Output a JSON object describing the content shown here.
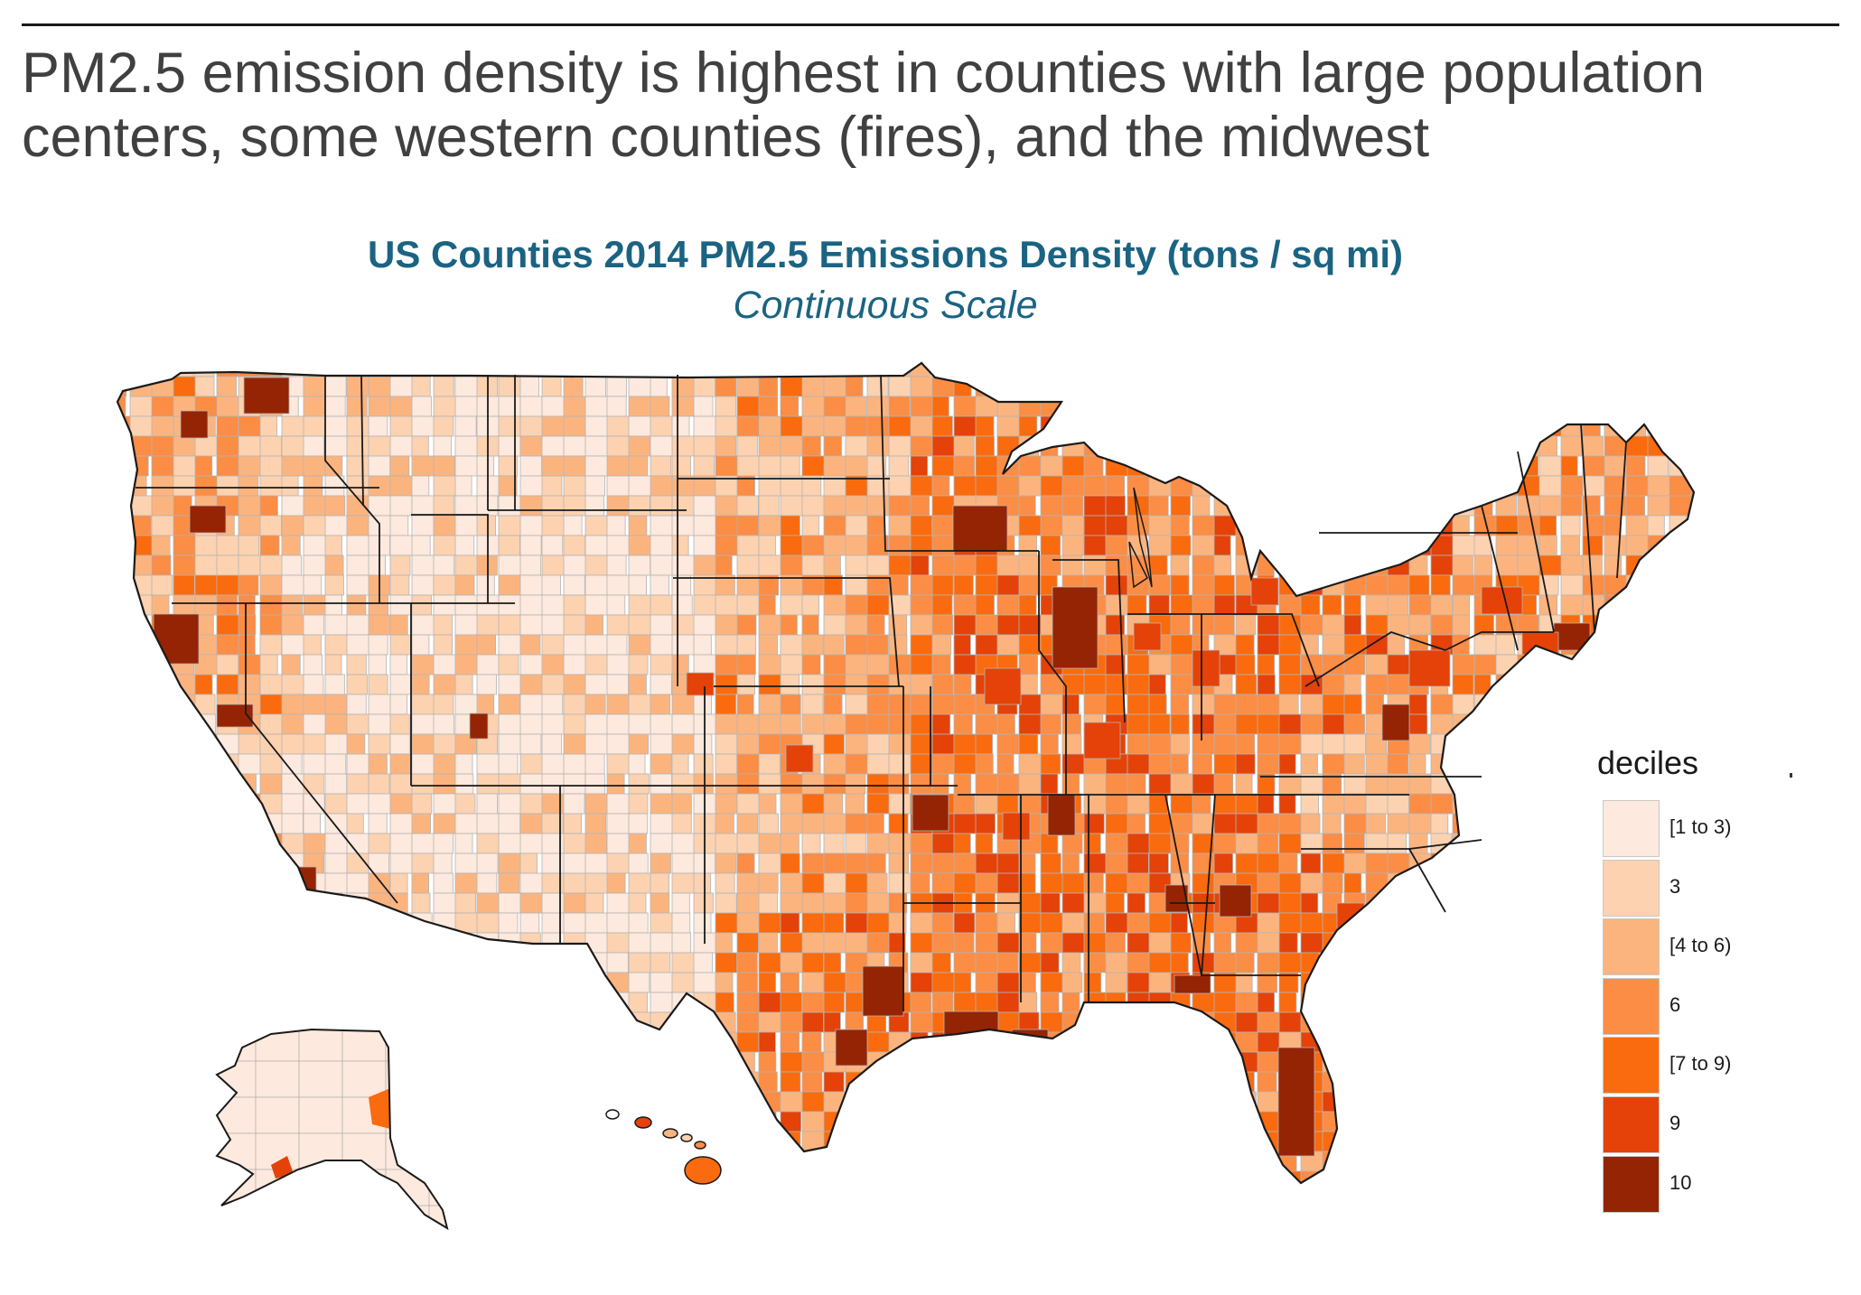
{
  "header": {
    "headline": "PM2.5 emission density is highest in counties with large population centers, some western counties (fires), and the midwest"
  },
  "map": {
    "title": "US Counties 2014 PM2.5 Emissions Density (tons / sq mi)",
    "subtitle": "Continuous Scale"
  },
  "legend": {
    "title": "deciles",
    "items": [
      {
        "label": "[1 to 3)",
        "color": "#fde9dd"
      },
      {
        "label": "3",
        "color": "#fcd2b0"
      },
      {
        "label": "[4 to 6)",
        "color": "#fcb47f"
      },
      {
        "label": "6",
        "color": "#fb8d45"
      },
      {
        "label": "[7 to 9)",
        "color": "#f96b0e"
      },
      {
        "label": "9",
        "color": "#e44208"
      },
      {
        "label": "10",
        "color": "#952404"
      }
    ]
  },
  "colors": {
    "title": "#1b6382",
    "headline": "#404040",
    "state_border": "#1a1a1a",
    "county_border": "#b4b4b4"
  }
}
